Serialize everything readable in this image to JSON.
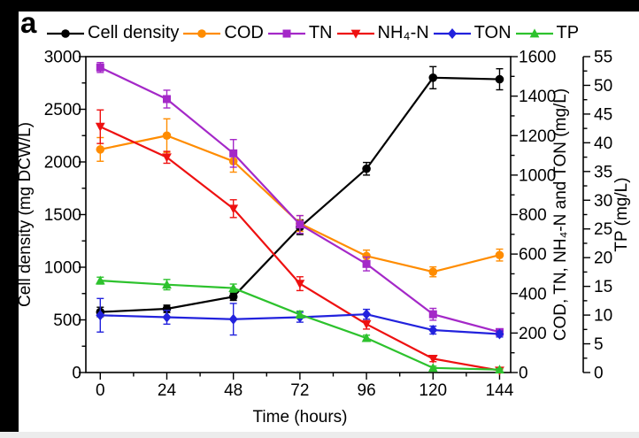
{
  "panel_label": "a",
  "figure": {
    "background": "#ffffff",
    "border_color": "#000000",
    "bottom_strip_color": "#ececec"
  },
  "chart_data": {
    "type": "line",
    "title": "",
    "legend_position": "top",
    "grid": false,
    "x": [
      0,
      24,
      48,
      72,
      96,
      120,
      144
    ],
    "x_axis": {
      "label": "Time (hours)",
      "ticks": [
        0,
        24,
        48,
        72,
        96,
        120,
        144
      ],
      "minor_step": 12,
      "lim": [
        -5.2,
        148
      ]
    },
    "axes": {
      "left": {
        "label": "Cell density (mg DCW/L)",
        "ticks": [
          0,
          500,
          1000,
          1500,
          2000,
          2500,
          3000
        ],
        "minor_step": 250,
        "lim": [
          0,
          3000
        ]
      },
      "right1": {
        "label": "COD, TN, NH₄-N and TON (mg/L)",
        "ticks": [
          0,
          200,
          400,
          600,
          800,
          1000,
          1200,
          1400,
          1600
        ],
        "minor_step": 100,
        "lim": [
          0,
          1600
        ]
      },
      "right2": {
        "label": "TP (mg/L)",
        "ticks": [
          0,
          5,
          10,
          15,
          20,
          25,
          30,
          35,
          40,
          45,
          50,
          55
        ],
        "minor_step": 2.5,
        "lim": [
          0,
          55
        ]
      }
    },
    "series": [
      {
        "name": "Cell density",
        "axis": "left",
        "unit": "mg DCW/L",
        "color": "#000000",
        "marker": "circle",
        "values": [
          575,
          605,
          720,
          1380,
          1935,
          2800,
          2785
        ],
        "errors": [
          45,
          35,
          35,
          70,
          60,
          105,
          100
        ]
      },
      {
        "name": "COD",
        "axis": "right1",
        "unit": "mg/L",
        "color": "#FF8C00",
        "marker": "circle",
        "values": [
          1130,
          1200,
          1070,
          755,
          590,
          510,
          595
        ],
        "errors": [
          60,
          85,
          55,
          40,
          30,
          25,
          30
        ]
      },
      {
        "name": "TN",
        "axis": "right1",
        "unit": "mg/L",
        "color": "#A428C8",
        "marker": "square",
        "values": [
          1545,
          1385,
          1110,
          750,
          550,
          295,
          205
        ],
        "errors": [
          25,
          45,
          70,
          45,
          35,
          30,
          15
        ]
      },
      {
        "name": "NH₄-N",
        "axis": "right1",
        "unit": "mg/L",
        "color": "#EE1111",
        "marker": "triangle-down",
        "values": [
          1245,
          1090,
          830,
          450,
          245,
          70,
          10
        ],
        "errors": [
          85,
          30,
          45,
          35,
          25,
          15,
          8
        ]
      },
      {
        "name": "TON",
        "axis": "right1",
        "unit": "mg/L",
        "color": "#2222DD",
        "marker": "diamond",
        "values": [
          290,
          280,
          270,
          280,
          295,
          215,
          195
        ],
        "errors": [
          85,
          35,
          80,
          25,
          25,
          20,
          15
        ]
      },
      {
        "name": "TP",
        "axis": "right2",
        "unit": "mg/L",
        "color": "#2DC22D",
        "marker": "triangle-up",
        "values": [
          16,
          15.3,
          14.7,
          10.1,
          6,
          0.8,
          0.5
        ],
        "errors": [
          0.6,
          0.9,
          0.7,
          0.6,
          0.5,
          0.3,
          0.2
        ]
      }
    ]
  }
}
